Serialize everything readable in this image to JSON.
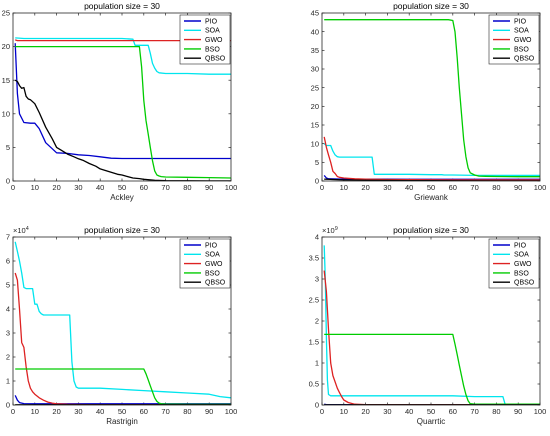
{
  "chart_data": [
    {
      "type": "line",
      "title": "population size = 30",
      "xlabel": "Ackley",
      "ylabel": "",
      "xlim": [
        0,
        100
      ],
      "ylim": [
        0,
        25
      ],
      "xticks": [
        "0",
        "10",
        "20",
        "30",
        "40",
        "50",
        "60",
        "70",
        "80",
        "90",
        "100"
      ],
      "yticks": [
        "0",
        "5",
        "10",
        "15",
        "20",
        "25"
      ],
      "multiplier": "",
      "legend_position": "top-right",
      "series": [
        {
          "name": "PIO",
          "color": "#0000cc",
          "x": [
            1,
            2,
            3,
            5,
            8,
            10,
            12,
            15,
            18,
            20,
            25,
            30,
            35,
            40,
            45,
            50,
            60,
            70,
            80,
            90,
            100
          ],
          "y": [
            20.5,
            13,
            10,
            8.7,
            8.6,
            8.6,
            7.8,
            5.7,
            4.8,
            4.2,
            4.1,
            3.9,
            3.8,
            3.6,
            3.4,
            3.35,
            3.35,
            3.35,
            3.35,
            3.35,
            3.35
          ]
        },
        {
          "name": "SOA",
          "color": "#00e5ee",
          "x": [
            1,
            5,
            10,
            20,
            30,
            40,
            50,
            55,
            56,
            60,
            62,
            63,
            64,
            65,
            66,
            67,
            70,
            80,
            90,
            100
          ],
          "y": [
            21.3,
            21.2,
            21.2,
            21.2,
            21.2,
            21.2,
            21.2,
            21.1,
            20.2,
            20.2,
            20.2,
            19,
            17.5,
            16.8,
            16.3,
            16.1,
            16,
            16,
            15.9,
            15.9
          ]
        },
        {
          "name": "GWO",
          "color": "#dd2222",
          "x": [
            1,
            2,
            100
          ],
          "y": [
            21,
            20.9,
            20.9
          ]
        },
        {
          "name": "BSO",
          "color": "#00cc00",
          "x": [
            1,
            3,
            5,
            10,
            20,
            30,
            40,
            50,
            55,
            58,
            59,
            60,
            61,
            62,
            63,
            64,
            65,
            66,
            67,
            68,
            70,
            80,
            90,
            100
          ],
          "y": [
            20,
            20,
            20,
            20,
            20,
            20,
            20,
            20,
            20,
            20,
            17,
            12,
            9,
            7,
            5,
            3,
            1.5,
            0.9,
            0.75,
            0.65,
            0.6,
            0.55,
            0.5,
            0.45
          ]
        },
        {
          "name": "QBSO",
          "color": "#000000",
          "x": [
            1,
            2,
            3,
            4,
            5,
            6,
            7,
            8,
            10,
            12,
            15,
            18,
            20,
            22,
            25,
            28,
            30,
            32,
            35,
            38,
            40,
            42,
            45,
            48,
            50,
            52,
            55,
            58,
            60,
            65,
            70,
            80,
            90,
            100
          ],
          "y": [
            15,
            14.8,
            14.2,
            13.8,
            13.9,
            12.6,
            12.2,
            12.1,
            11.5,
            10.2,
            8,
            6.3,
            5,
            4.6,
            4,
            3.6,
            3.3,
            3.1,
            2.6,
            2.2,
            1.8,
            1.6,
            1.3,
            1,
            0.9,
            0.7,
            0.45,
            0.35,
            0.25,
            0.1,
            0.05,
            0.03,
            0.02,
            0.01
          ]
        }
      ]
    },
    {
      "type": "line",
      "title": "population size = 30",
      "xlabel": "Griewank",
      "ylabel": "",
      "xlim": [
        0,
        100
      ],
      "ylim": [
        0,
        45
      ],
      "xticks": [
        "0",
        "10",
        "20",
        "30",
        "40",
        "50",
        "60",
        "70",
        "80",
        "90",
        "100"
      ],
      "yticks": [
        "0",
        "5",
        "10",
        "15",
        "20",
        "25",
        "30",
        "35",
        "40",
        "45"
      ],
      "multiplier": "",
      "legend_position": "top-right",
      "series": [
        {
          "name": "PIO",
          "color": "#0000cc",
          "x": [
            1,
            2,
            3,
            10,
            20,
            40,
            60,
            80,
            100
          ],
          "y": [
            1.5,
            0.8,
            0.6,
            0.5,
            0.5,
            0.45,
            0.45,
            0.45,
            0.45
          ]
        },
        {
          "name": "SOA",
          "color": "#00e5ee",
          "x": [
            1,
            2,
            4,
            5,
            6,
            7,
            8,
            23,
            24,
            25,
            30,
            40,
            50,
            55,
            56,
            60,
            70,
            80,
            90,
            100
          ],
          "y": [
            10,
            9.5,
            9.5,
            8,
            7,
            6.5,
            6.4,
            6.4,
            1.8,
            1.8,
            1.8,
            1.8,
            1.7,
            1.7,
            1.6,
            1.6,
            1.5,
            1.5,
            1.5,
            1.5
          ]
        },
        {
          "name": "GWO",
          "color": "#dd2222",
          "x": [
            1,
            2,
            3,
            4,
            5,
            6,
            7,
            8,
            10,
            15,
            20,
            30,
            40,
            60,
            80,
            100
          ],
          "y": [
            11.8,
            9,
            7,
            5,
            2.6,
            2,
            1.2,
            1,
            0.8,
            0.6,
            0.5,
            0.4,
            0.35,
            0.3,
            0.3,
            0.3
          ]
        },
        {
          "name": "BSO",
          "color": "#00cc00",
          "x": [
            1,
            5,
            10,
            20,
            30,
            40,
            50,
            58,
            60,
            61,
            62,
            63,
            64,
            65,
            66,
            67,
            68,
            70,
            72,
            75,
            80,
            90,
            100
          ],
          "y": [
            43.2,
            43.2,
            43.2,
            43.2,
            43.2,
            43.2,
            43.2,
            43.2,
            43,
            40,
            33,
            25,
            18,
            11,
            6.5,
            3.5,
            2.2,
            1.6,
            1.3,
            1.25,
            1.2,
            1.15,
            1.15
          ]
        },
        {
          "name": "QBSO",
          "color": "#000000",
          "x": [
            1,
            5,
            10,
            20,
            30,
            40,
            50,
            60,
            80,
            100
          ],
          "y": [
            0.5,
            0.4,
            0.3,
            0.2,
            0.15,
            0.1,
            0.08,
            0.05,
            0.03,
            0.02
          ]
        }
      ]
    },
    {
      "type": "line",
      "title": "population size = 30",
      "xlabel": "Rastrigin",
      "ylabel": "",
      "xlim": [
        0,
        100
      ],
      "ylim": [
        0,
        7
      ],
      "xticks": [
        "0",
        "10",
        "20",
        "30",
        "40",
        "50",
        "60",
        "70",
        "80",
        "90",
        "100"
      ],
      "yticks": [
        "0",
        "1",
        "2",
        "3",
        "4",
        "5",
        "6",
        "7"
      ],
      "multiplier": "×10",
      "multiplier_exp": "4",
      "legend_position": "top-right",
      "series": [
        {
          "name": "PIO",
          "color": "#0000cc",
          "x": [
            1,
            2,
            3,
            5,
            10,
            20,
            40,
            60,
            80,
            100
          ],
          "y": [
            0.4,
            0.2,
            0.1,
            0.06,
            0.05,
            0.05,
            0.05,
            0.05,
            0.05,
            0.05
          ]
        },
        {
          "name": "SOA",
          "color": "#00e5ee",
          "x": [
            1,
            2,
            3,
            4,
            5,
            6,
            8,
            9,
            10,
            11,
            12,
            13,
            14,
            26,
            27,
            28,
            29,
            30,
            40,
            50,
            60,
            70,
            80,
            90,
            95,
            100
          ],
          "y": [
            6.8,
            6.4,
            6,
            5.5,
            4.9,
            4.85,
            4.85,
            4.85,
            4.2,
            4.2,
            3.9,
            3.8,
            3.75,
            3.75,
            1.8,
            1,
            0.75,
            0.7,
            0.7,
            0.65,
            0.6,
            0.55,
            0.5,
            0.45,
            0.35,
            0.3
          ]
        },
        {
          "name": "GWO",
          "color": "#dd2222",
          "x": [
            1,
            2,
            3,
            4,
            5,
            6,
            7,
            8,
            9,
            10,
            12,
            14,
            16,
            18,
            20,
            25,
            30,
            40,
            60,
            100
          ],
          "y": [
            5.5,
            5.2,
            4,
            2.6,
            2.4,
            1.6,
            1,
            0.7,
            0.55,
            0.45,
            0.3,
            0.2,
            0.12,
            0.08,
            0.05,
            0.03,
            0.02,
            0.01,
            0.01,
            0.01
          ]
        },
        {
          "name": "BSO",
          "color": "#00cc00",
          "x": [
            1,
            10,
            20,
            30,
            40,
            50,
            60,
            61,
            62,
            63,
            64,
            65,
            66,
            67,
            68,
            70,
            80,
            90,
            100
          ],
          "y": [
            1.5,
            1.5,
            1.5,
            1.5,
            1.5,
            1.5,
            1.5,
            1.3,
            1.05,
            0.8,
            0.55,
            0.3,
            0.15,
            0.08,
            0.05,
            0.04,
            0.03,
            0.03,
            0.03
          ]
        },
        {
          "name": "QBSO",
          "color": "#000000",
          "x": [
            1,
            10,
            30,
            60,
            100
          ],
          "y": [
            0.01,
            0.01,
            0.01,
            0.01,
            0.01
          ]
        }
      ]
    },
    {
      "type": "line",
      "title": "population size = 30",
      "xlabel": "Quarrtic",
      "ylabel": "",
      "xlim": [
        0,
        100
      ],
      "ylim": [
        0,
        4
      ],
      "xticks": [
        "0",
        "10",
        "20",
        "30",
        "40",
        "50",
        "60",
        "70",
        "80",
        "90",
        "100"
      ],
      "yticks": [
        "0",
        "0.5",
        "1",
        "1.5",
        "2",
        "2.5",
        "3",
        "3.5",
        "4"
      ],
      "multiplier": "×10",
      "multiplier_exp": "9",
      "legend_position": "top-right",
      "series": [
        {
          "name": "PIO",
          "color": "#0000cc",
          "x": [
            1,
            2,
            5,
            10,
            20,
            40,
            60,
            80,
            100
          ],
          "y": [
            0.02,
            0.01,
            0.01,
            0.01,
            0.01,
            0.01,
            0.01,
            0.01,
            0.01
          ]
        },
        {
          "name": "SOA",
          "color": "#00e5ee",
          "x": [
            1,
            1.5,
            2,
            2.5,
            3,
            4,
            10,
            20,
            30,
            40,
            50,
            60,
            70,
            80,
            83,
            84,
            85,
            90,
            100
          ],
          "y": [
            3.8,
            3,
            1.6,
            0.6,
            0.25,
            0.22,
            0.22,
            0.22,
            0.22,
            0.22,
            0.22,
            0.22,
            0.2,
            0.2,
            0.2,
            0.02,
            0.01,
            0.01,
            0.01
          ]
        },
        {
          "name": "GWO",
          "color": "#dd2222",
          "x": [
            1,
            2,
            3,
            4,
            5,
            6,
            7,
            8,
            9,
            10,
            12,
            15,
            20,
            30,
            60,
            100
          ],
          "y": [
            3.2,
            2.7,
            1.8,
            1,
            0.7,
            0.55,
            0.4,
            0.3,
            0.2,
            0.12,
            0.06,
            0.02,
            0.01,
            0.01,
            0.01,
            0.01
          ]
        },
        {
          "name": "BSO",
          "color": "#00cc00",
          "x": [
            1,
            10,
            20,
            30,
            40,
            50,
            60,
            61,
            62,
            63,
            64,
            65,
            66,
            67,
            68,
            70,
            80,
            90,
            100
          ],
          "y": [
            1.68,
            1.68,
            1.68,
            1.68,
            1.68,
            1.68,
            1.68,
            1.45,
            1.2,
            0.95,
            0.7,
            0.45,
            0.25,
            0.1,
            0.03,
            0.02,
            0.02,
            0.02,
            0.02
          ]
        },
        {
          "name": "QBSO",
          "color": "#000000",
          "x": [
            1,
            10,
            50,
            100
          ],
          "y": [
            0.005,
            0.005,
            0.005,
            0.005
          ]
        }
      ]
    }
  ]
}
